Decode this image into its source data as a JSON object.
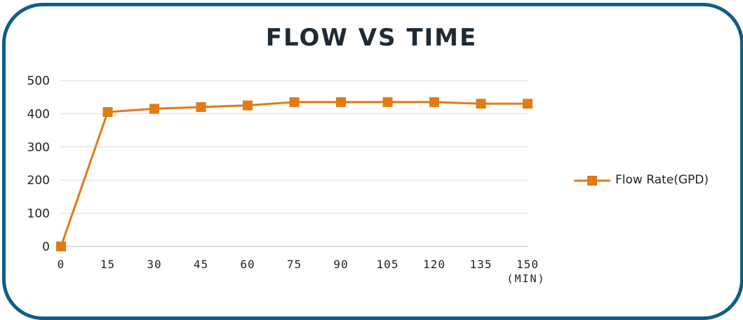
{
  "chart_data": {
    "type": "line",
    "title": "FLOW VS TIME",
    "x": [
      0,
      15,
      30,
      45,
      60,
      75,
      90,
      105,
      120,
      135,
      150
    ],
    "x_tick_labels": [
      "0",
      "15",
      "30",
      "45",
      "60",
      "75",
      "90",
      "105",
      "120",
      "135",
      "150"
    ],
    "x_unit_label": "(MIN)",
    "ylim": [
      0,
      500
    ],
    "y_ticks": [
      0,
      100,
      200,
      300,
      400,
      500
    ],
    "grid": true,
    "legend_position": "right",
    "series": [
      {
        "name": "Flow Rate(GPD)",
        "color": "#e07b14",
        "marker": "square",
        "values": [
          0,
          405,
          415,
          420,
          425,
          435,
          435,
          435,
          435,
          430,
          430
        ]
      }
    ]
  },
  "colors": {
    "border": "#0e5e87",
    "grid": "#d9d9d9",
    "series": "#e07b14"
  }
}
